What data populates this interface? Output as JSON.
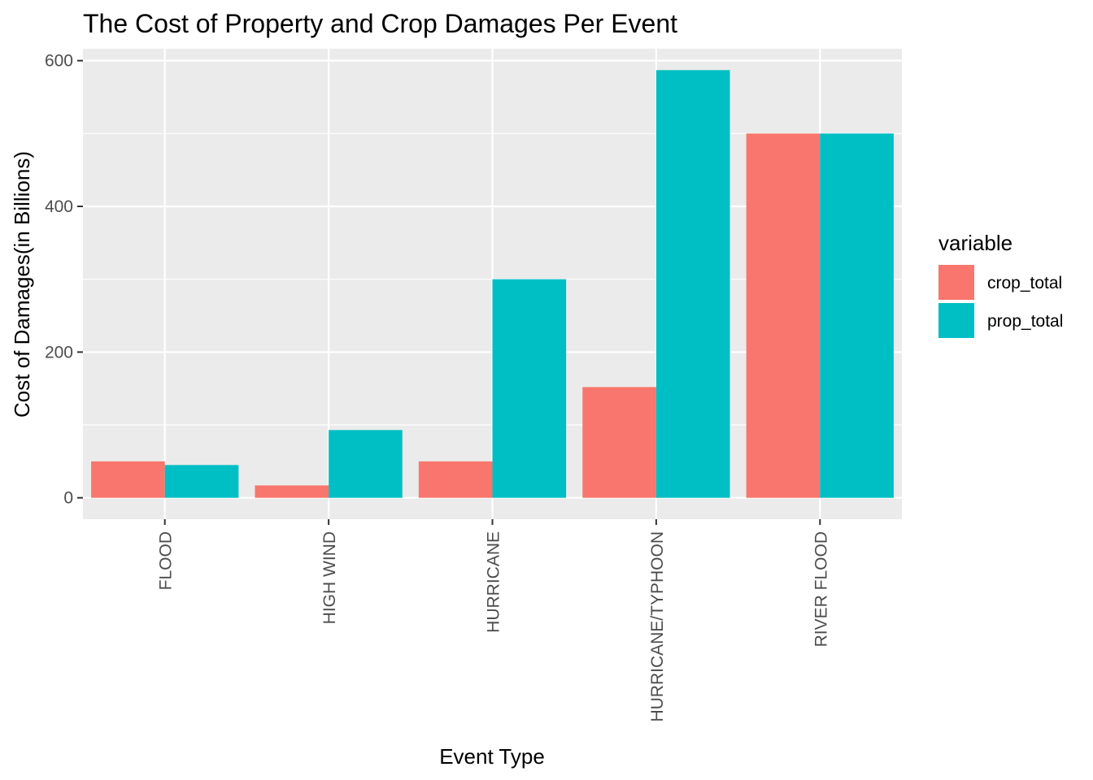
{
  "chart_data": {
    "type": "bar",
    "title": "The Cost of Property and Crop Damages Per Event",
    "xlabel": "Event Type",
    "ylabel": "Cost of Damages(in Billions)",
    "categories": [
      "FLOOD",
      "HIGH WIND",
      "HURRICANE",
      "HURRICANE/TYPHOON",
      "RIVER FLOOD"
    ],
    "series": [
      {
        "name": "crop_total",
        "color": "#F8766D",
        "values": [
          50,
          17,
          50,
          152,
          500
        ]
      },
      {
        "name": "prop_total",
        "color": "#00BFC4",
        "values": [
          45,
          93,
          300,
          587,
          500
        ]
      }
    ],
    "ylim": [
      -29.35,
      616.35
    ],
    "yticks": [
      0,
      200,
      400,
      600
    ],
    "grid": true,
    "legend_title": "variable",
    "legend_position": "right",
    "panel_color": "#EBEBEB",
    "grid_color": "#FFFFFF"
  }
}
